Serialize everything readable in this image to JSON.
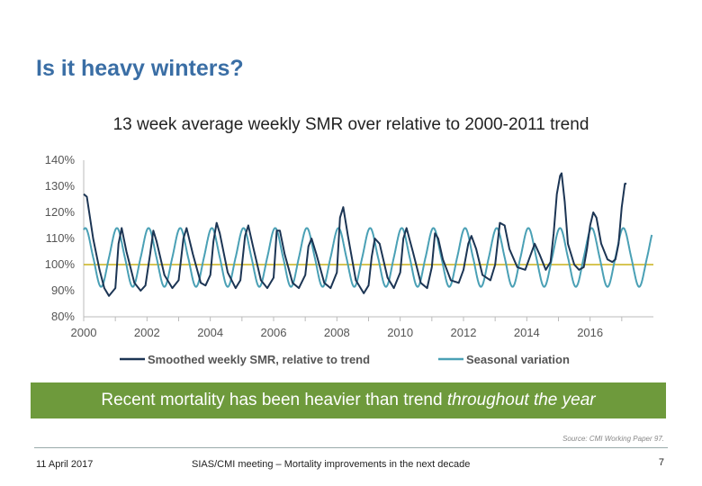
{
  "slide": {
    "title": "Is it heavy winters?",
    "banner_text": "Recent mortality has been heavier than trend ",
    "banner_emphasis": "throughout the year",
    "source": "Source: CMI Working Paper 97.",
    "footer_date": "11 April 2017",
    "footer_meeting": "SIAS/CMI meeting – Mortality improvements in the next decade",
    "page_number": "7"
  },
  "chart_data": {
    "type": "line",
    "title": "13 week average weekly SMR over relative to 2000-2011 trend",
    "xlim": [
      2000,
      2018
    ],
    "ylim": [
      80,
      140
    ],
    "x_ticks": [
      2000,
      2002,
      2004,
      2006,
      2008,
      2010,
      2012,
      2014,
      2016
    ],
    "x_tick_labels": [
      "2000",
      "2002",
      "2004",
      "2006",
      "2008",
      "2010",
      "2012",
      "2014",
      "2016"
    ],
    "y_ticks": [
      80,
      90,
      100,
      110,
      120,
      130,
      140
    ],
    "y_tick_labels": [
      "80%",
      "90%",
      "100%",
      "110%",
      "120%",
      "130%",
      "140%"
    ],
    "reference_line": 100,
    "legend_position": "bottom",
    "colors": {
      "smoothed": "#1c3554",
      "seasonal": "#4aa0b5",
      "reference": "#c9b21a",
      "axis": "#bbbbbb"
    },
    "series": [
      {
        "name": "Smoothed weekly SMR, relative to trend",
        "key": "smoothed",
        "points": [
          [
            2000.0,
            127
          ],
          [
            2000.1,
            126
          ],
          [
            2000.3,
            110
          ],
          [
            2000.5,
            98
          ],
          [
            2000.65,
            91
          ],
          [
            2000.8,
            88
          ],
          [
            2001.0,
            91
          ],
          [
            2001.1,
            108
          ],
          [
            2001.2,
            114
          ],
          [
            2001.35,
            105
          ],
          [
            2001.6,
            93
          ],
          [
            2001.8,
            90
          ],
          [
            2001.95,
            92
          ],
          [
            2002.1,
            104
          ],
          [
            2002.2,
            113
          ],
          [
            2002.3,
            109
          ],
          [
            2002.55,
            96
          ],
          [
            2002.8,
            91
          ],
          [
            2003.0,
            94
          ],
          [
            2003.15,
            110
          ],
          [
            2003.25,
            114
          ],
          [
            2003.45,
            104
          ],
          [
            2003.7,
            93
          ],
          [
            2003.85,
            92
          ],
          [
            2004.0,
            96
          ],
          [
            2004.1,
            109
          ],
          [
            2004.2,
            116
          ],
          [
            2004.3,
            112
          ],
          [
            2004.55,
            97
          ],
          [
            2004.8,
            91
          ],
          [
            2004.95,
            94
          ],
          [
            2005.1,
            111
          ],
          [
            2005.2,
            115
          ],
          [
            2005.35,
            107
          ],
          [
            2005.6,
            94
          ],
          [
            2005.8,
            91
          ],
          [
            2006.0,
            95
          ],
          [
            2006.1,
            113
          ],
          [
            2006.2,
            113
          ],
          [
            2006.35,
            104
          ],
          [
            2006.6,
            93
          ],
          [
            2006.8,
            91
          ],
          [
            2007.0,
            96
          ],
          [
            2007.1,
            107
          ],
          [
            2007.2,
            110
          ],
          [
            2007.35,
            104
          ],
          [
            2007.6,
            93
          ],
          [
            2007.8,
            91
          ],
          [
            2008.0,
            97
          ],
          [
            2008.1,
            118
          ],
          [
            2008.2,
            122
          ],
          [
            2008.35,
            111
          ],
          [
            2008.6,
            94
          ],
          [
            2008.85,
            89
          ],
          [
            2009.0,
            92
          ],
          [
            2009.1,
            103
          ],
          [
            2009.2,
            110
          ],
          [
            2009.35,
            108
          ],
          [
            2009.6,
            95
          ],
          [
            2009.8,
            91
          ],
          [
            2010.0,
            97
          ],
          [
            2010.1,
            110
          ],
          [
            2010.2,
            114
          ],
          [
            2010.4,
            105
          ],
          [
            2010.65,
            93
          ],
          [
            2010.85,
            91
          ],
          [
            2011.0,
            99
          ],
          [
            2011.1,
            112
          ],
          [
            2011.2,
            110
          ],
          [
            2011.35,
            102
          ],
          [
            2011.6,
            94
          ],
          [
            2011.85,
            93
          ],
          [
            2012.0,
            98
          ],
          [
            2012.15,
            108
          ],
          [
            2012.25,
            111
          ],
          [
            2012.4,
            106
          ],
          [
            2012.6,
            96
          ],
          [
            2012.85,
            94
          ],
          [
            2013.0,
            100
          ],
          [
            2013.15,
            116
          ],
          [
            2013.3,
            115
          ],
          [
            2013.45,
            106
          ],
          [
            2013.7,
            99
          ],
          [
            2013.95,
            98
          ],
          [
            2014.1,
            103
          ],
          [
            2014.25,
            108
          ],
          [
            2014.4,
            104
          ],
          [
            2014.6,
            98
          ],
          [
            2014.75,
            101
          ],
          [
            2014.85,
            112
          ],
          [
            2014.95,
            127
          ],
          [
            2015.05,
            134
          ],
          [
            2015.1,
            135
          ],
          [
            2015.2,
            124
          ],
          [
            2015.3,
            108
          ],
          [
            2015.5,
            100
          ],
          [
            2015.65,
            98
          ],
          [
            2015.8,
            99
          ],
          [
            2015.9,
            106
          ],
          [
            2016.0,
            115
          ],
          [
            2016.1,
            120
          ],
          [
            2016.2,
            118
          ],
          [
            2016.35,
            108
          ],
          [
            2016.55,
            102
          ],
          [
            2016.7,
            101
          ],
          [
            2016.8,
            102
          ],
          [
            2016.9,
            108
          ],
          [
            2017.0,
            122
          ],
          [
            2017.1,
            131
          ],
          [
            2017.15,
            131
          ]
        ]
      },
      {
        "name": "Seasonal variation",
        "key": "seasonal",
        "peak_value": 114,
        "trough_value": 91.5,
        "peak_time_in_year": 0.05,
        "x_range": [
          2000.0,
          2017.95
        ]
      }
    ]
  }
}
